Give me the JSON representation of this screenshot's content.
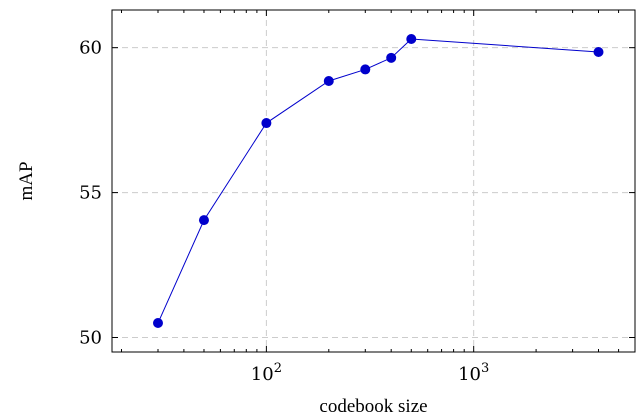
{
  "chart_data": {
    "type": "line",
    "title": "",
    "xlabel": "codebook size",
    "ylabel": "mAP",
    "x_scale": "log",
    "xlim": [
      18,
      6000
    ],
    "ylim": [
      49.5,
      61.3
    ],
    "grid": true,
    "x_major_ticks": [
      {
        "value": 100,
        "base": "10",
        "exp": "2"
      },
      {
        "value": 1000,
        "base": "10",
        "exp": "3"
      }
    ],
    "y_ticks": [
      {
        "value": 50,
        "label": "50"
      },
      {
        "value": 55,
        "label": "55"
      },
      {
        "value": 60,
        "label": "60"
      }
    ],
    "colors": {
      "series": "#0000cc",
      "grid": "#cccccc",
      "axis": "#000000"
    },
    "series": [
      {
        "x": [
          30,
          50,
          100,
          200,
          300,
          400,
          500,
          4000
        ],
        "y": [
          50.5,
          54.05,
          57.4,
          58.85,
          59.25,
          59.65,
          60.3,
          59.85
        ]
      }
    ]
  }
}
